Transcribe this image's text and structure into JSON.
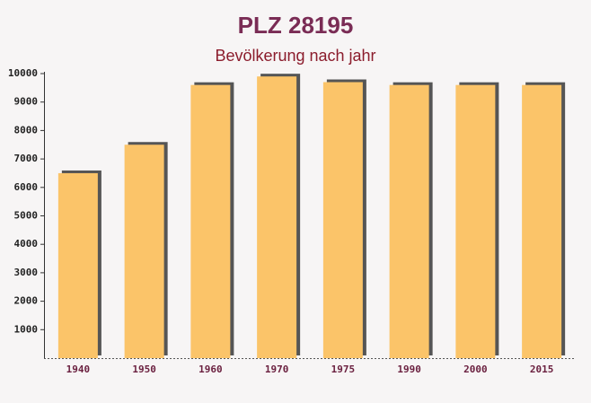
{
  "chart_data": {
    "type": "bar",
    "title": "PLZ 28195",
    "subtitle": "Bevölkerung nach jahr",
    "categories": [
      "1940",
      "1950",
      "1960",
      "1970",
      "1975",
      "1990",
      "2000",
      "2015"
    ],
    "values": [
      6500,
      7500,
      9600,
      9900,
      9700,
      9600,
      9600,
      9600
    ],
    "color": "#fbc469",
    "ylim": [
      0,
      10000
    ],
    "yticks": [
      1000,
      2000,
      3000,
      4000,
      5000,
      6000,
      7000,
      8000,
      9000,
      10000
    ],
    "grid": false
  }
}
